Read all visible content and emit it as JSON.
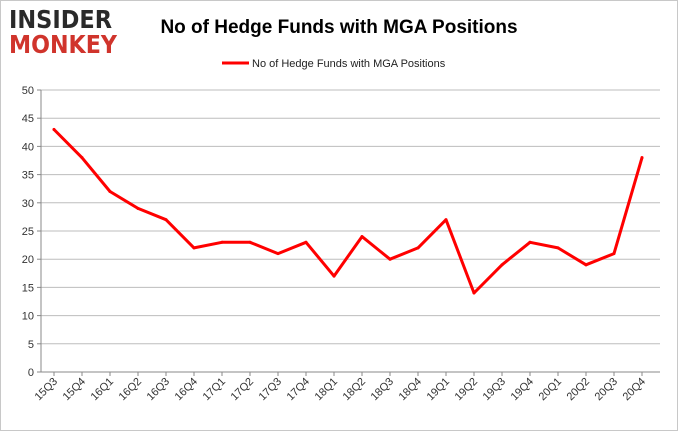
{
  "logo": {
    "line1": "INSIDER",
    "line2": "MONKEY",
    "color_dark": "#2a2a2a",
    "color_accent": "#d0342c"
  },
  "chart_data": {
    "type": "line",
    "title": "No of Hedge Funds with MGA Positions",
    "categories": [
      "15Q3",
      "15Q4",
      "16Q1",
      "16Q2",
      "16Q3",
      "16Q4",
      "17Q1",
      "17Q2",
      "17Q3",
      "17Q4",
      "18Q1",
      "18Q2",
      "18Q3",
      "18Q4",
      "19Q1",
      "19Q2",
      "19Q3",
      "19Q4",
      "20Q1",
      "20Q2",
      "20Q3",
      "20Q4"
    ],
    "series": [
      {
        "name": "No of Hedge Funds with MGA Positions",
        "color": "#ff0000",
        "values": [
          43,
          38,
          32,
          29,
          27,
          22,
          23,
          23,
          21,
          23,
          17,
          24,
          20,
          22,
          27,
          14,
          19,
          23,
          22,
          19,
          21,
          38
        ]
      }
    ],
    "ylim": [
      0,
      50
    ],
    "yticks": [
      0,
      5,
      10,
      15,
      20,
      25,
      30,
      35,
      40,
      45,
      50
    ],
    "grid": true,
    "legend_position": "top-center",
    "xlabel": "",
    "ylabel": ""
  }
}
